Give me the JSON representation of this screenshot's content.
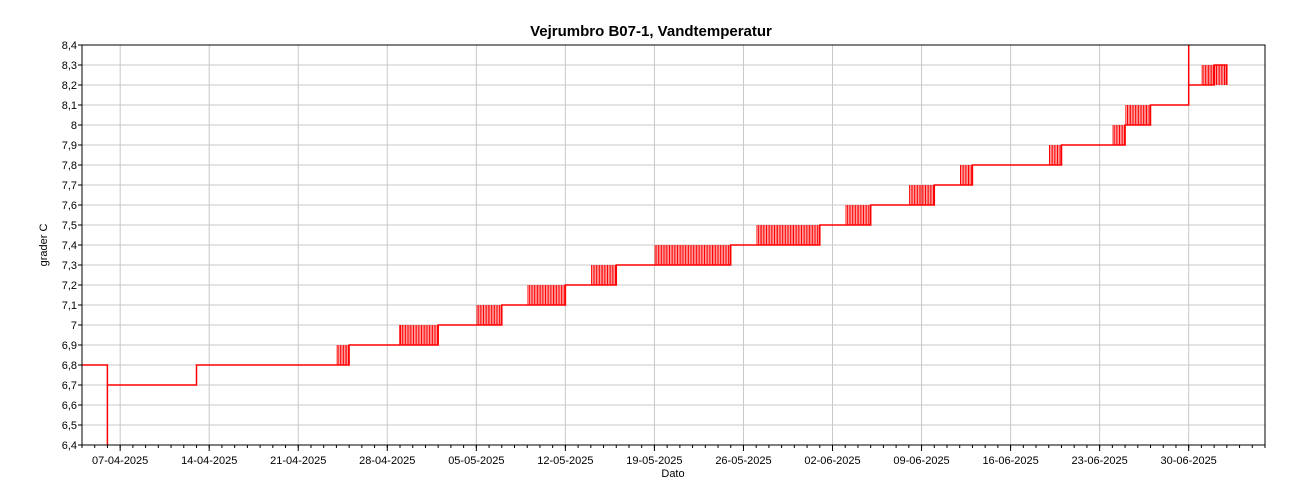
{
  "chart_data": {
    "type": "line",
    "title": "Vejrumbro B07-1, Vandtemperatur",
    "xlabel": "Dato",
    "ylabel": "grader C",
    "ylim": [
      6.4,
      8.4
    ],
    "xlim": [
      "2025-04-04",
      "2025-07-06"
    ],
    "grid": true,
    "y_ticks": [
      "6,4",
      "6,5",
      "6,6",
      "6,7",
      "6,8",
      "6,9",
      "7",
      "7,1",
      "7,2",
      "7,3",
      "7,4",
      "7,5",
      "7,6",
      "7,7",
      "7,8",
      "7,9",
      "8",
      "8,1",
      "8,2",
      "8,3",
      "8,4"
    ],
    "x_ticks": [
      "07-04-2025",
      "14-04-2025",
      "21-04-2025",
      "28-04-2025",
      "05-05-2025",
      "12-05-2025",
      "19-05-2025",
      "26-05-2025",
      "02-06-2025",
      "09-06-2025",
      "16-06-2025",
      "23-06-2025",
      "30-06-2025"
    ],
    "series": [
      {
        "color": "#ff0000",
        "x": [
          "2025-04-04",
          "2025-04-06",
          "2025-04-06",
          "2025-04-06",
          "2025-04-06",
          "2025-04-13",
          "2025-04-13",
          "2025-04-24",
          "2025-04-25",
          "2025-04-26",
          "2025-04-29",
          "2025-04-29",
          "2025-04-29",
          "2025-05-02",
          "2025-05-03",
          "2025-05-04",
          "2025-05-05",
          "2025-05-07",
          "2025-05-08",
          "2025-05-09",
          "2025-05-12",
          "2025-05-13",
          "2025-05-14",
          "2025-05-16",
          "2025-05-17",
          "2025-05-19",
          "2025-05-25",
          "2025-05-26",
          "2025-05-27",
          "2025-06-01",
          "2025-06-02",
          "2025-06-03",
          "2025-06-05",
          "2025-06-06",
          "2025-06-08",
          "2025-06-10",
          "2025-06-11",
          "2025-06-12",
          "2025-06-13",
          "2025-06-14",
          "2025-06-19",
          "2025-06-20",
          "2025-06-24",
          "2025-06-25",
          "2025-06-27",
          "2025-06-28",
          "2025-06-30",
          "2025-06-30",
          "2025-06-30",
          "2025-07-01",
          "2025-07-02",
          "2025-07-03"
        ],
        "y": [
          6.8,
          6.8,
          6.4,
          6.8,
          6.7,
          6.7,
          6.8,
          6.8,
          6.9,
          6.9,
          6.9,
          7.0,
          6.9,
          7.0,
          7.0,
          7.0,
          7.0,
          7.1,
          7.1,
          7.1,
          7.2,
          7.2,
          7.2,
          7.3,
          7.3,
          7.3,
          7.4,
          7.4,
          7.4,
          7.5,
          7.5,
          7.5,
          7.6,
          7.6,
          7.6,
          7.7,
          7.7,
          7.7,
          7.8,
          7.8,
          7.8,
          7.9,
          7.9,
          8.0,
          8.1,
          8.1,
          8.1,
          8.4,
          8.2,
          8.2,
          8.3,
          8.2
        ]
      }
    ]
  }
}
